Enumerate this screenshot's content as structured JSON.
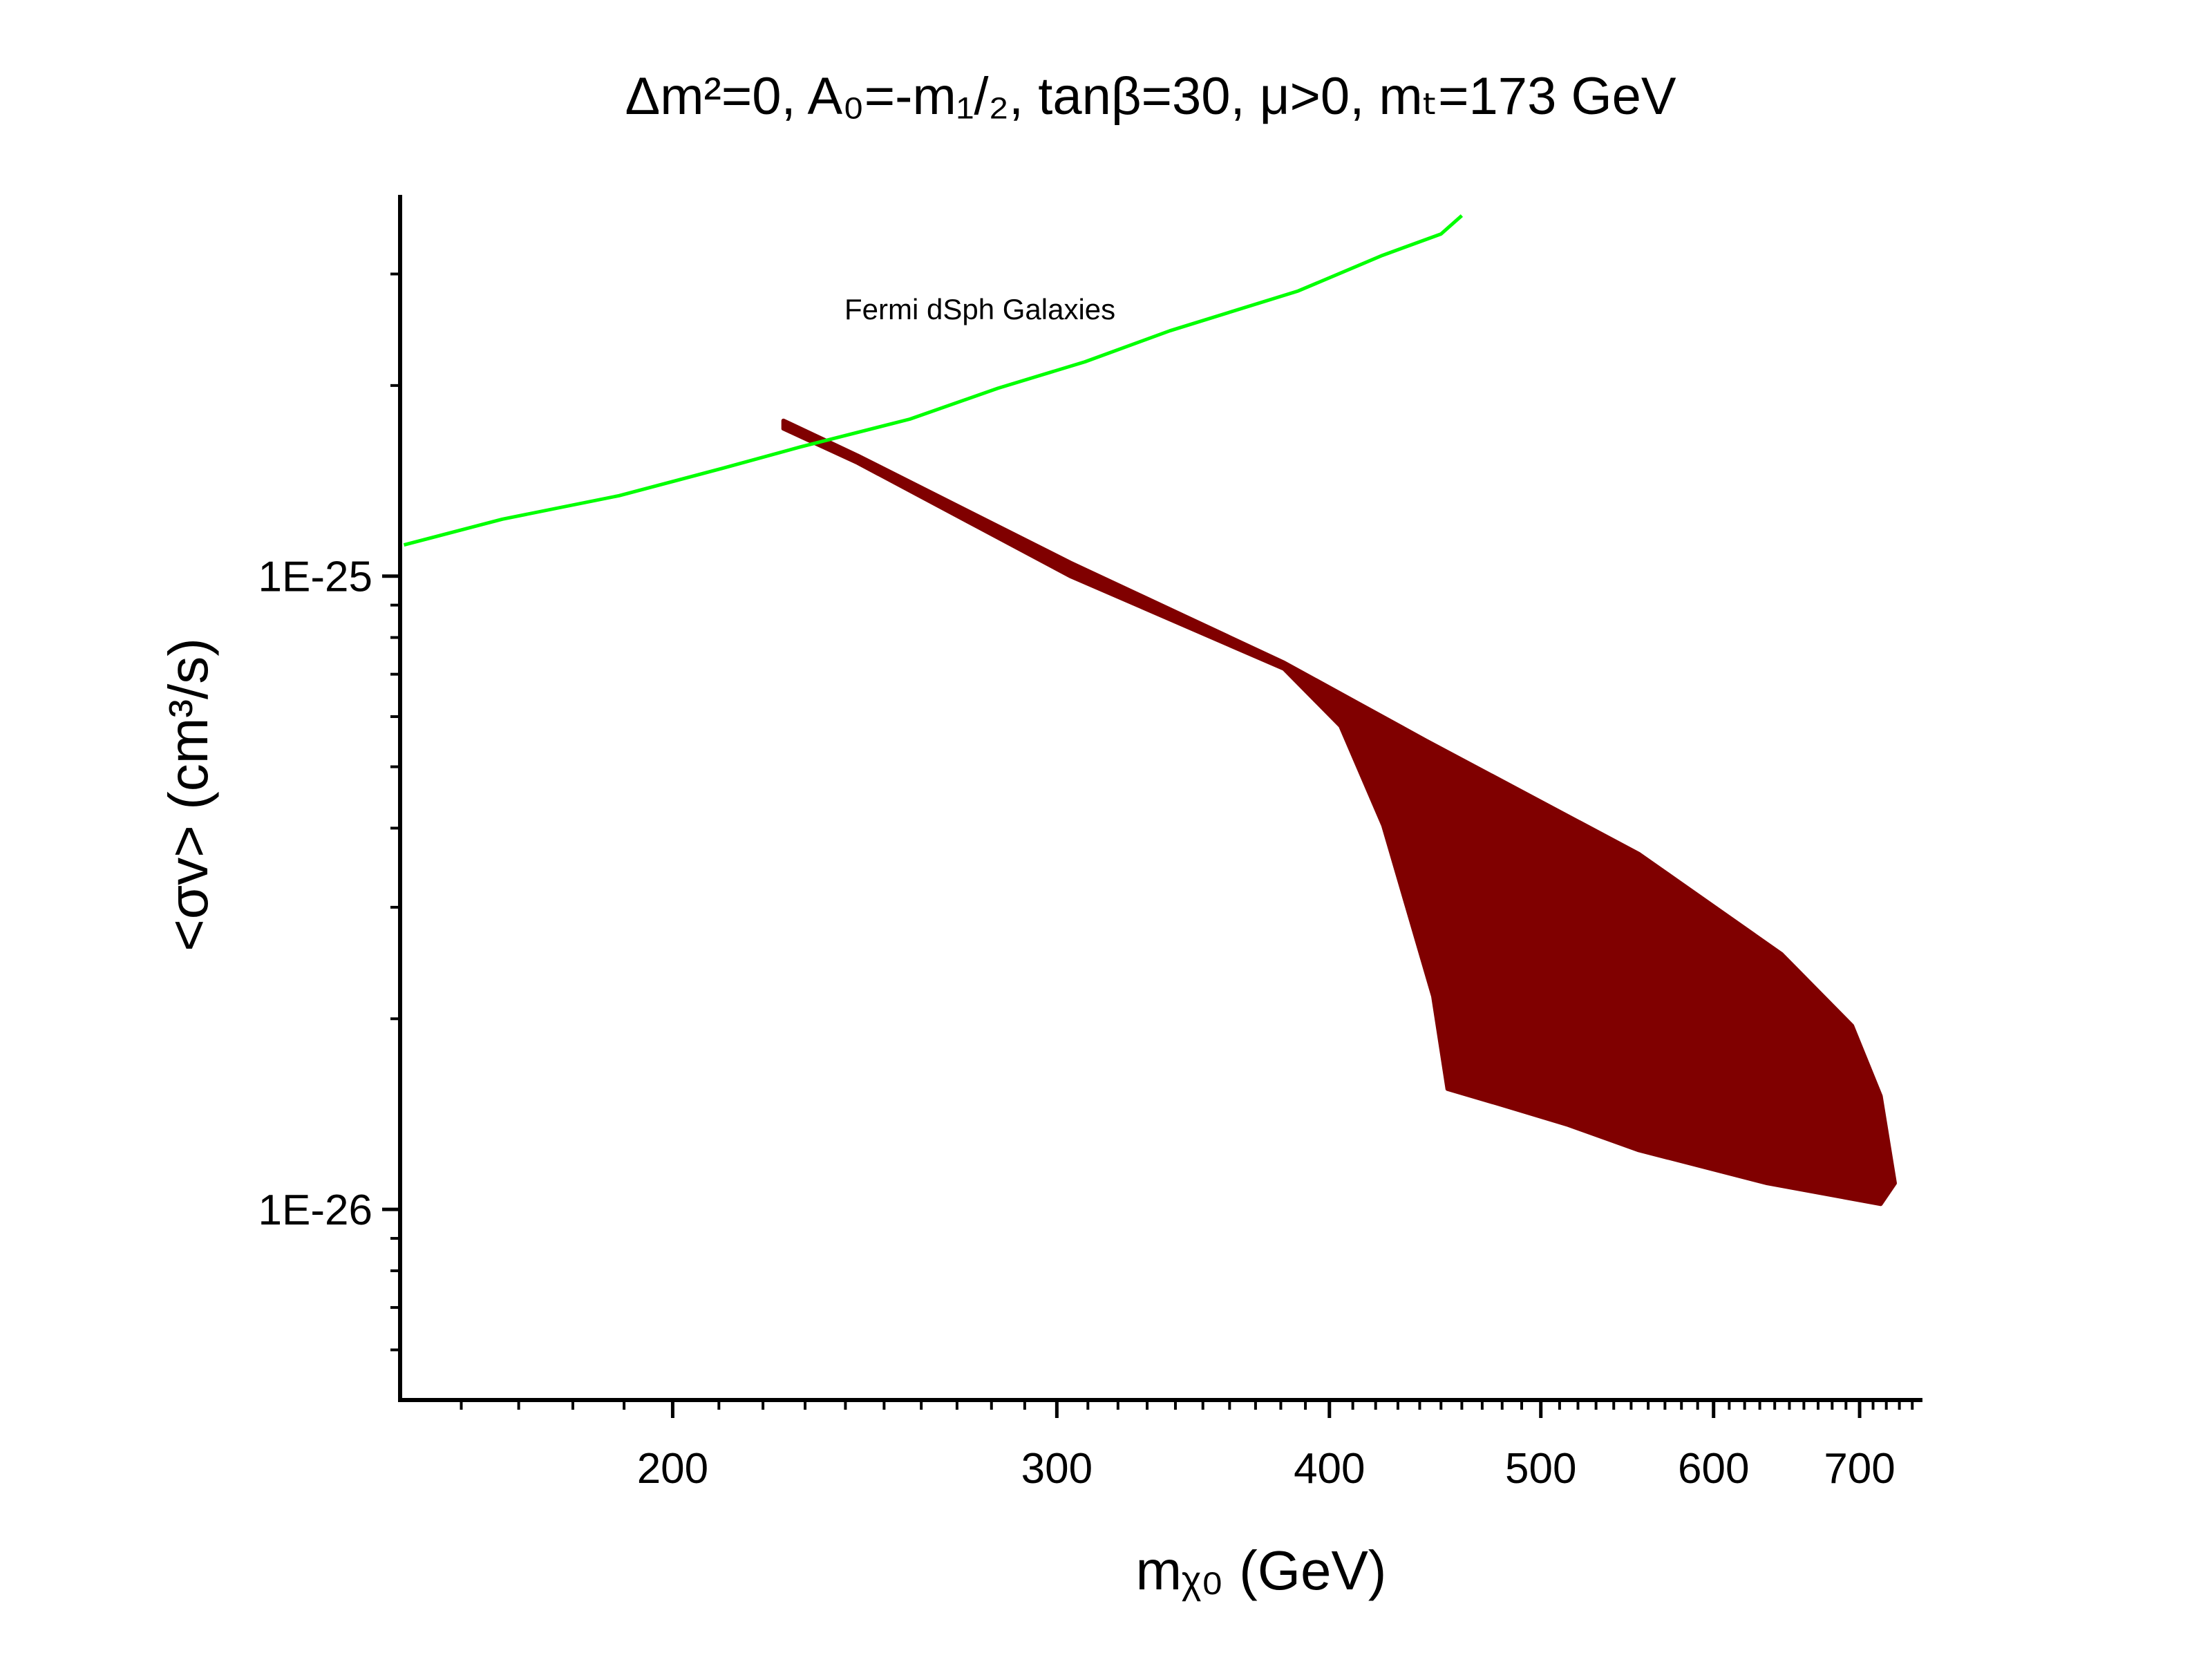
{
  "chart_data": {
    "type": "line",
    "title": "Δm²=0, A₀=-m₁/₂, tanβ=30, μ>0, mₜ=173 GeV",
    "xlabel": "mᵪ₀ (GeV)",
    "ylabel": "<σv> (cm³/s)",
    "annotation": "Fermi dSph Galaxies",
    "xlog": true,
    "ylog": true,
    "xlim": [
      150,
      748
    ],
    "ylim": [
      5e-27,
      4e-25
    ],
    "xticks": [
      200,
      300,
      400,
      500,
      600,
      700
    ],
    "yticks": [
      {
        "value": 1e-26,
        "label": "1E-26"
      },
      {
        "value": 1e-25,
        "label": "1E-25"
      }
    ],
    "xminorticks": [
      160,
      170,
      180,
      190,
      210,
      220,
      230,
      240,
      250,
      260,
      270,
      280,
      290,
      310,
      320,
      330,
      340,
      350,
      360,
      370,
      380,
      390,
      410,
      420,
      430,
      440,
      450,
      460,
      470,
      480,
      490,
      510,
      520,
      530,
      540,
      550,
      560,
      570,
      580,
      590,
      610,
      620,
      630,
      640,
      650,
      660,
      670,
      680,
      690,
      710,
      720,
      730,
      740
    ],
    "yminorticks": [
      6e-27,
      7e-27,
      8e-27,
      9e-27,
      2e-26,
      3e-26,
      4e-26,
      5e-26,
      6e-26,
      7e-26,
      8e-26,
      9e-26,
      2e-25,
      3e-25
    ],
    "series": [
      {
        "style": "region",
        "color": "#800000",
        "x": [
          224.8,
          243.1,
          304.3,
          381.3,
          442.9,
          554.6,
          644.6,
          694.4,
          715.7,
          726.5,
          715.7,
          635,
          554.6,
          514.6,
          477.4,
          453.1,
          446.3,
          423.4,
          404.7,
          381.3,
          304.3,
          243.1,
          224.8
        ],
        "values": [
          1.76e-25,
          1.55e-25,
          1.05e-25,
          7.3e-26,
          5.5e-26,
          3.64e-26,
          2.53e-26,
          1.95e-26,
          1.51e-26,
          1.1e-26,
          1.02e-26,
          1.1e-26,
          1.24e-26,
          1.36e-26,
          1.47e-26,
          1.55e-26,
          2.17e-26,
          4.04e-26,
          5.8e-26,
          7.14e-26,
          1e-25,
          1.51e-25,
          1.71e-25
        ]
      },
      {
        "style": "line",
        "color": "#00ff00",
        "x": [
          150.6,
          167.1,
          189,
          210.8,
          228.9,
          256.9,
          281.9,
          309,
          338,
          387,
          423,
          450,
          460
        ],
        "values": [
          1.12e-25,
          1.23e-25,
          1.34e-25,
          1.48e-25,
          1.6e-25,
          1.77e-25,
          1.98e-25,
          2.18e-25,
          2.44e-25,
          2.82e-25,
          3.21e-25,
          3.47e-25,
          3.71e-25
        ]
      }
    ]
  }
}
